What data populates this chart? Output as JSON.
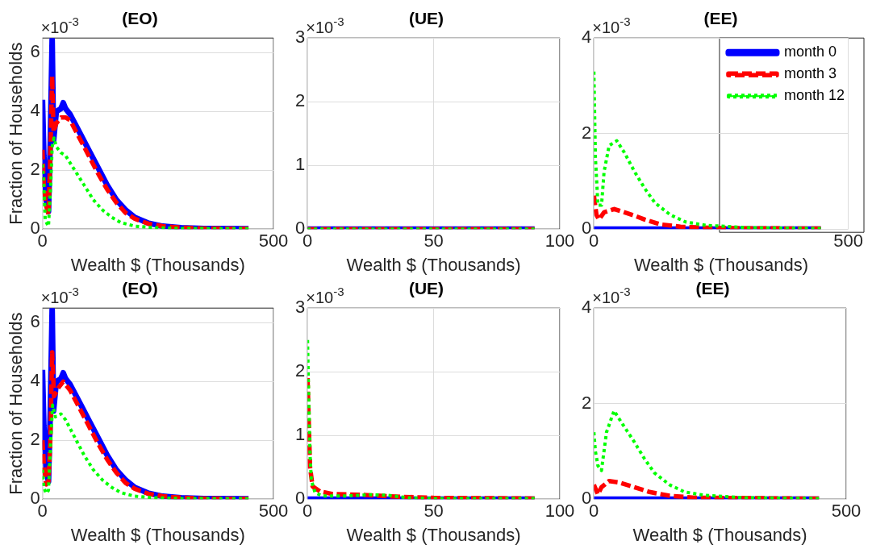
{
  "chart_data": [
    {
      "type": "line",
      "title": "(EO)",
      "xlabel": "Wealth $ (Thousands)",
      "ylabel": "Fraction of Households",
      "annotations": [
        "×10$^{-3}$"
      ],
      "xlim": [
        0,
        500
      ],
      "xticks": [
        0,
        500
      ],
      "ylim": [
        0,
        6.5
      ],
      "yticks": [
        0,
        2,
        4,
        6
      ],
      "grid": true,
      "legend": false,
      "series": [
        {
          "color": "#0000ff",
          "line_style": "solid",
          "x": [
            0,
            3,
            8,
            13,
            17,
            21,
            24,
            30,
            40,
            45,
            50,
            60,
            80,
            100,
            120,
            140,
            160,
            180,
            200,
            230,
            260,
            300,
            350,
            446
          ],
          "values": [
            4.4,
            2.5,
            1.0,
            0.6,
            3.0,
            6.45,
            3.0,
            4.0,
            4.1,
            4.3,
            4.1,
            3.9,
            3.3,
            2.7,
            2.1,
            1.5,
            1.0,
            0.65,
            0.4,
            0.2,
            0.1,
            0.05,
            0.02,
            0.01
          ]
        },
        {
          "color": "#ff0000",
          "line_style": "dashed",
          "x": [
            0,
            3,
            8,
            13,
            17,
            21,
            24,
            30,
            40,
            50,
            60,
            80,
            100,
            120,
            140,
            160,
            180,
            200,
            230,
            260,
            300,
            350,
            446
          ],
          "values": [
            2.7,
            1.5,
            0.8,
            0.5,
            2.5,
            5.2,
            3.3,
            3.6,
            3.8,
            3.8,
            3.7,
            3.1,
            2.5,
            1.9,
            1.35,
            0.9,
            0.55,
            0.35,
            0.18,
            0.1,
            0.05,
            0.02,
            0.01
          ]
        },
        {
          "color": "#00ff00",
          "line_style": "dotted",
          "x": [
            0,
            3,
            6,
            13,
            18,
            21,
            25,
            30,
            40,
            50,
            70,
            90,
            110,
            130,
            150,
            170,
            200,
            240,
            300,
            446
          ],
          "values": [
            2.2,
            1.5,
            0.3,
            0.1,
            1.5,
            2.8,
            3.1,
            2.8,
            2.6,
            2.5,
            2.0,
            1.5,
            1.0,
            0.65,
            0.4,
            0.22,
            0.1,
            0.05,
            0.02,
            0.01
          ]
        }
      ]
    },
    {
      "type": "line",
      "title": "(UE)",
      "xlabel": "Wealth $ (Thousands)",
      "annotations": [
        "×10$^{-3}$"
      ],
      "xlim": [
        0,
        100
      ],
      "xticks": [
        0,
        50,
        100
      ],
      "ylim": [
        0,
        3
      ],
      "yticks": [
        0,
        1,
        2,
        3
      ],
      "grid": true,
      "legend": false,
      "series": [
        {
          "color": "#0000ff",
          "line_style": "solid",
          "x": [
            0,
            90
          ],
          "values": [
            0,
            0
          ]
        },
        {
          "color": "#ff0000",
          "line_style": "dashed",
          "x": [
            0,
            90
          ],
          "values": [
            0,
            0
          ]
        },
        {
          "color": "#00ff00",
          "line_style": "dotted",
          "x": [
            0,
            90
          ],
          "values": [
            0,
            0
          ]
        }
      ]
    },
    {
      "type": "line",
      "title": "(EE)",
      "xlabel": "Wealth $ (Thousands)",
      "annotations": [
        "×10$^{-3}$"
      ],
      "xlim": [
        0,
        500
      ],
      "xticks": [
        0,
        500
      ],
      "ylim": [
        0,
        4
      ],
      "yticks": [
        0,
        2,
        4
      ],
      "grid": true,
      "legend": "top right",
      "series": [
        {
          "name": "month 0",
          "color": "#0000ff",
          "line_style": "solid",
          "x": [
            0,
            446
          ],
          "values": [
            0,
            0
          ]
        },
        {
          "name": "month 3",
          "color": "#ff0000",
          "line_style": "dashed",
          "x": [
            0,
            5,
            10,
            20,
            40,
            60,
            80,
            100,
            130,
            170,
            250,
            446
          ],
          "values": [
            0.7,
            0.3,
            0.2,
            0.35,
            0.42,
            0.35,
            0.28,
            0.2,
            0.1,
            0.05,
            0.02,
            0.01
          ]
        },
        {
          "name": "month 12",
          "color": "#00ff00",
          "line_style": "dotted",
          "x": [
            0,
            3,
            8,
            15,
            20,
            30,
            45,
            60,
            80,
            100,
            120,
            150,
            180,
            220,
            300,
            446
          ],
          "values": [
            3.3,
            1.5,
            0.5,
            0.5,
            1.2,
            1.75,
            1.85,
            1.6,
            1.2,
            0.85,
            0.55,
            0.3,
            0.15,
            0.08,
            0.03,
            0.01
          ]
        }
      ]
    },
    {
      "type": "line",
      "title": "(EO)",
      "xlabel": "Wealth $ (Thousands)",
      "ylabel": "Fraction of Households",
      "annotations": [
        "×10$^{-3}$"
      ],
      "xlim": [
        0,
        500
      ],
      "xticks": [
        0,
        500
      ],
      "ylim": [
        0,
        6.5
      ],
      "yticks": [
        0,
        2,
        4,
        6
      ],
      "grid": true,
      "legend": false,
      "series": [
        {
          "color": "#0000ff",
          "line_style": "solid",
          "x": [
            0,
            3,
            8,
            13,
            17,
            21,
            24,
            30,
            40,
            45,
            50,
            60,
            80,
            100,
            120,
            140,
            160,
            180,
            200,
            230,
            260,
            300,
            350,
            446
          ],
          "values": [
            4.4,
            2.5,
            1.0,
            0.6,
            3.0,
            6.45,
            3.0,
            4.0,
            4.1,
            4.3,
            4.1,
            3.9,
            3.3,
            2.7,
            2.1,
            1.5,
            1.0,
            0.65,
            0.4,
            0.2,
            0.1,
            0.05,
            0.02,
            0.01
          ]
        },
        {
          "color": "#ff0000",
          "line_style": "dashed",
          "x": [
            0,
            3,
            8,
            13,
            17,
            21,
            25,
            35,
            45,
            60,
            80,
            100,
            120,
            140,
            160,
            180,
            200,
            230,
            260,
            300,
            350,
            446
          ],
          "values": [
            2.0,
            1.2,
            0.5,
            0.6,
            2.0,
            5.0,
            3.5,
            3.8,
            4.0,
            3.7,
            3.1,
            2.5,
            1.9,
            1.35,
            0.9,
            0.55,
            0.35,
            0.18,
            0.1,
            0.05,
            0.02,
            0.01
          ]
        },
        {
          "color": "#00ff00",
          "line_style": "dotted",
          "x": [
            0,
            3,
            8,
            13,
            18,
            22,
            28,
            40,
            50,
            70,
            90,
            110,
            130,
            150,
            170,
            200,
            240,
            300,
            446
          ],
          "values": [
            1.0,
            0.4,
            0.2,
            0.3,
            2.0,
            3.2,
            2.8,
            2.9,
            2.7,
            2.1,
            1.5,
            1.0,
            0.65,
            0.4,
            0.22,
            0.1,
            0.05,
            0.02,
            0.01
          ]
        }
      ]
    },
    {
      "type": "line",
      "title": "(UE)",
      "xlabel": "Wealth $ (Thousands)",
      "annotations": [
        "×10$^{-3}$"
      ],
      "xlim": [
        0,
        100
      ],
      "xticks": [
        0,
        50,
        100
      ],
      "ylim": [
        0,
        3
      ],
      "yticks": [
        0,
        1,
        2,
        3
      ],
      "grid": true,
      "legend": false,
      "series": [
        {
          "color": "#0000ff",
          "line_style": "solid",
          "x": [
            0,
            90
          ],
          "values": [
            0,
            0
          ]
        },
        {
          "color": "#ff0000",
          "line_style": "dashed",
          "x": [
            0,
            0.5,
            1,
            2,
            5,
            10,
            20,
            35,
            50,
            90
          ],
          "values": [
            1.9,
            1.2,
            0.5,
            0.2,
            0.12,
            0.08,
            0.07,
            0.04,
            0.02,
            0.01
          ]
        },
        {
          "color": "#00ff00",
          "line_style": "dotted",
          "x": [
            0,
            0.5,
            1,
            1.5,
            3,
            6,
            15,
            25,
            32,
            40,
            50,
            90
          ],
          "values": [
            2.5,
            1.5,
            0.7,
            0.3,
            0.1,
            0.05,
            0.05,
            0.07,
            0.06,
            0.02,
            0.01,
            0.01
          ]
        }
      ]
    },
    {
      "type": "line",
      "title": "(EE)",
      "xlabel": "Wealth $ (Thousands)",
      "annotations": [
        "×10$^{-3}$"
      ],
      "xlim": [
        0,
        500
      ],
      "xticks": [
        0,
        500
      ],
      "ylim": [
        0,
        4
      ],
      "yticks": [
        0,
        2,
        4
      ],
      "grid": true,
      "legend": false,
      "series": [
        {
          "color": "#0000ff",
          "line_style": "solid",
          "x": [
            0,
            446
          ],
          "values": [
            0,
            0
          ]
        },
        {
          "color": "#ff0000",
          "line_style": "dashed",
          "x": [
            0,
            8,
            15,
            30,
            50,
            80,
            110,
            150,
            200,
            446
          ],
          "values": [
            0.3,
            0.1,
            0.25,
            0.38,
            0.35,
            0.25,
            0.15,
            0.07,
            0.03,
            0.01
          ]
        },
        {
          "color": "#00ff00",
          "line_style": "dotted",
          "x": [
            0,
            3,
            8,
            15,
            25,
            40,
            55,
            80,
            100,
            120,
            150,
            180,
            220,
            300,
            446
          ],
          "values": [
            1.4,
            1.0,
            0.7,
            0.6,
            1.4,
            1.85,
            1.6,
            1.2,
            0.85,
            0.55,
            0.3,
            0.15,
            0.08,
            0.03,
            0.01
          ]
        }
      ]
    }
  ]
}
